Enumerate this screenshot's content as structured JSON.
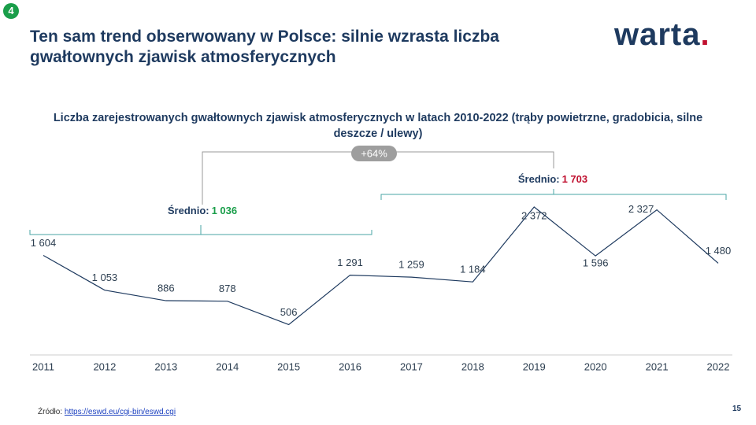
{
  "badge": "4",
  "title": "Ten sam trend obserwowany w Polsce: silnie wzrasta liczba gwałtownych zjawisk atmosferycznych",
  "logo": {
    "text": "warta",
    "dot": "."
  },
  "chart_data": {
    "type": "line",
    "title": "Liczba zarejestrowanych  gwałtownych zjawisk atmosferycznych w latach 2010-2022 (trąby powietrzne, gradobicia, silne deszcze / ulewy)",
    "categories": [
      "2011",
      "2012",
      "2013",
      "2014",
      "2015",
      "2016",
      "2017",
      "2018",
      "2019",
      "2020",
      "2021",
      "2022"
    ],
    "values": [
      1604,
      1053,
      886,
      878,
      506,
      1291,
      1259,
      1184,
      2372,
      1596,
      2327,
      1480
    ],
    "value_labels": [
      "1 604",
      "1 053",
      "886",
      "878",
      "506",
      "1 291",
      "1 259",
      "1 184",
      "2 372",
      "1 596",
      "2 327",
      "1 480"
    ],
    "color": "#1e3a5f",
    "annotations": [
      {
        "text": "Średnio:",
        "value": "1 036",
        "color": "#1a9e4a"
      },
      {
        "text": "Średnio:",
        "value": "1 703",
        "color": "#c0102f"
      },
      {
        "text": "+64%"
      }
    ]
  },
  "source": {
    "label": "Źródło:",
    "url": "https://eswd.eu/cgi-bin/eswd.cgi"
  },
  "page_number": "15"
}
